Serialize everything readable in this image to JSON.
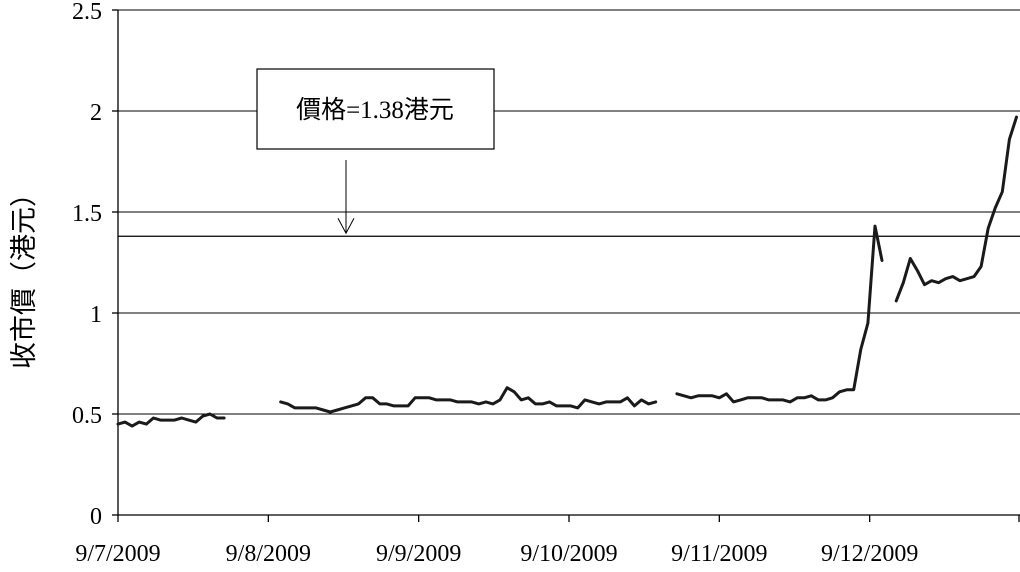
{
  "chart_data": {
    "type": "line",
    "title": "",
    "xlabel": "",
    "ylabel": "收市價（港元）",
    "ylim": [
      0,
      2.5
    ],
    "yticks": [
      "0",
      "0.5",
      "1",
      "1.5",
      "2",
      "2.5"
    ],
    "ytick_values": [
      0,
      0.5,
      1,
      1.5,
      2,
      2.5
    ],
    "xticks": [
      "9/7/2009",
      "9/8/2009",
      "9/9/2009",
      "9/10/2009",
      "9/11/2009",
      "9/12/2009"
    ],
    "grid": true,
    "legend": "none",
    "reference_line": {
      "value": 1.38,
      "label": "價格=1.38港元"
    },
    "series": [
      {
        "color": "#1a1a1a",
        "segments": [
          [
            [
              0.0,
              0.45
            ],
            [
              0.2,
              0.46
            ],
            [
              0.4,
              0.44
            ],
            [
              0.6,
              0.46
            ],
            [
              0.8,
              0.45
            ],
            [
              1.0,
              0.48
            ],
            [
              1.2,
              0.47
            ],
            [
              1.4,
              0.47
            ],
            [
              1.6,
              0.47
            ],
            [
              1.8,
              0.48
            ],
            [
              2.0,
              0.47
            ],
            [
              2.2,
              0.46
            ],
            [
              2.4,
              0.49
            ],
            [
              2.6,
              0.5
            ],
            [
              2.8,
              0.48
            ],
            [
              3.0,
              0.48
            ]
          ],
          [
            [
              4.6,
              0.56
            ],
            [
              4.8,
              0.55
            ],
            [
              5.0,
              0.53
            ],
            [
              5.2,
              0.53
            ],
            [
              5.4,
              0.53
            ],
            [
              5.6,
              0.53
            ],
            [
              5.8,
              0.52
            ],
            [
              6.0,
              0.51
            ],
            [
              6.2,
              0.52
            ],
            [
              6.4,
              0.53
            ],
            [
              6.6,
              0.54
            ],
            [
              6.8,
              0.55
            ],
            [
              7.0,
              0.58
            ],
            [
              7.2,
              0.58
            ],
            [
              7.4,
              0.55
            ],
            [
              7.6,
              0.55
            ],
            [
              7.8,
              0.54
            ],
            [
              8.0,
              0.54
            ],
            [
              8.2,
              0.54
            ],
            [
              8.4,
              0.58
            ],
            [
              8.6,
              0.58
            ],
            [
              8.8,
              0.58
            ],
            [
              9.0,
              0.57
            ],
            [
              9.2,
              0.57
            ],
            [
              9.4,
              0.57
            ],
            [
              9.6,
              0.56
            ],
            [
              9.8,
              0.56
            ],
            [
              10.0,
              0.56
            ],
            [
              10.2,
              0.55
            ],
            [
              10.4,
              0.56
            ],
            [
              10.6,
              0.55
            ],
            [
              10.8,
              0.57
            ],
            [
              11.0,
              0.63
            ],
            [
              11.2,
              0.61
            ],
            [
              11.4,
              0.57
            ],
            [
              11.6,
              0.58
            ],
            [
              11.8,
              0.55
            ],
            [
              12.0,
              0.55
            ],
            [
              12.2,
              0.56
            ],
            [
              12.4,
              0.54
            ],
            [
              12.6,
              0.54
            ],
            [
              12.8,
              0.54
            ],
            [
              13.0,
              0.53
            ],
            [
              13.2,
              0.57
            ],
            [
              13.4,
              0.56
            ],
            [
              13.6,
              0.55
            ],
            [
              13.8,
              0.56
            ],
            [
              14.0,
              0.56
            ],
            [
              14.2,
              0.56
            ],
            [
              14.4,
              0.58
            ],
            [
              14.6,
              0.54
            ],
            [
              14.8,
              0.57
            ],
            [
              15.0,
              0.55
            ],
            [
              15.2,
              0.56
            ]
          ],
          [
            [
              15.8,
              0.6
            ],
            [
              16.0,
              0.59
            ],
            [
              16.2,
              0.58
            ],
            [
              16.4,
              0.59
            ],
            [
              16.6,
              0.59
            ],
            [
              16.8,
              0.59
            ],
            [
              17.0,
              0.58
            ],
            [
              17.2,
              0.6
            ],
            [
              17.4,
              0.56
            ],
            [
              17.6,
              0.57
            ],
            [
              17.8,
              0.58
            ],
            [
              18.0,
              0.58
            ],
            [
              18.2,
              0.58
            ],
            [
              18.4,
              0.57
            ],
            [
              18.6,
              0.57
            ],
            [
              18.8,
              0.57
            ],
            [
              19.0,
              0.56
            ],
            [
              19.2,
              0.58
            ],
            [
              19.4,
              0.58
            ],
            [
              19.6,
              0.59
            ],
            [
              19.8,
              0.57
            ],
            [
              20.0,
              0.57
            ],
            [
              20.2,
              0.58
            ],
            [
              20.4,
              0.61
            ],
            [
              20.6,
              0.62
            ],
            [
              20.8,
              0.62
            ],
            [
              21.0,
              0.82
            ],
            [
              21.2,
              0.95
            ],
            [
              21.4,
              1.43
            ],
            [
              21.6,
              1.26
            ]
          ],
          [
            [
              22.0,
              1.06
            ],
            [
              22.2,
              1.15
            ],
            [
              22.4,
              1.27
            ],
            [
              22.6,
              1.21
            ],
            [
              22.8,
              1.14
            ],
            [
              23.0,
              1.16
            ],
            [
              23.2,
              1.15
            ],
            [
              23.4,
              1.17
            ],
            [
              23.6,
              1.18
            ],
            [
              23.8,
              1.16
            ],
            [
              24.0,
              1.17
            ],
            [
              24.2,
              1.18
            ],
            [
              24.4,
              1.23
            ],
            [
              24.6,
              1.42
            ],
            [
              24.8,
              1.52
            ],
            [
              25.0,
              1.6
            ],
            [
              25.2,
              1.86
            ],
            [
              25.4,
              1.97
            ]
          ]
        ]
      }
    ]
  }
}
